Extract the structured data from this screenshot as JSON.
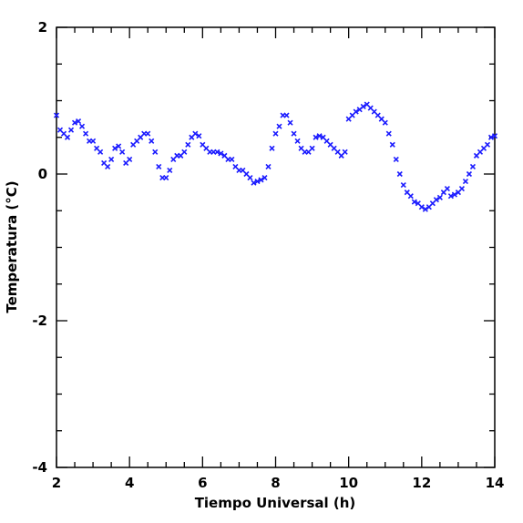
{
  "chart_data": {
    "type": "scatter",
    "xlabel": "Tiempo Universal (h)",
    "ylabel": "Temperatura (°C)",
    "color": "#1a1aff",
    "xlim": [
      2,
      14
    ],
    "xticks": [
      2,
      4,
      6,
      8,
      10,
      12,
      14
    ],
    "ylim": [
      -4,
      2
    ],
    "yticks": [
      -4,
      -2,
      0,
      2
    ],
    "x": [
      2.0,
      2.1,
      2.2,
      2.3,
      2.4,
      2.5,
      2.6,
      2.7,
      2.8,
      2.9,
      3.0,
      3.1,
      3.2,
      3.3,
      3.4,
      3.5,
      3.6,
      3.7,
      3.8,
      3.9,
      4.0,
      4.1,
      4.2,
      4.3,
      4.4,
      4.5,
      4.6,
      4.7,
      4.8,
      4.9,
      5.0,
      5.1,
      5.2,
      5.3,
      5.4,
      5.5,
      5.6,
      5.7,
      5.8,
      5.9,
      6.0,
      6.1,
      6.2,
      6.3,
      6.4,
      6.5,
      6.6,
      6.7,
      6.8,
      6.9,
      7.0,
      7.1,
      7.2,
      7.3,
      7.4,
      7.5,
      7.6,
      7.7,
      7.8,
      7.9,
      8.0,
      8.1,
      8.2,
      8.3,
      8.4,
      8.5,
      8.6,
      8.7,
      8.8,
      8.9,
      9.0,
      9.1,
      9.2,
      9.3,
      9.4,
      9.5,
      9.6,
      9.7,
      9.8,
      9.9,
      10.0,
      10.1,
      10.2,
      10.3,
      10.4,
      10.5,
      10.6,
      10.7,
      10.8,
      10.9,
      11.0,
      11.1,
      11.2,
      11.3,
      11.4,
      11.5,
      11.6,
      11.7,
      11.8,
      11.9,
      12.0,
      12.1,
      12.2,
      12.3,
      12.4,
      12.5,
      12.6,
      12.7,
      12.8,
      12.9,
      13.0,
      13.1,
      13.2,
      13.3,
      13.4,
      13.5,
      13.6,
      13.7,
      13.8,
      13.9,
      14.0
    ],
    "values": [
      0.8,
      0.6,
      0.55,
      0.5,
      0.6,
      0.7,
      0.72,
      0.65,
      0.55,
      0.45,
      0.45,
      0.35,
      0.3,
      0.15,
      0.1,
      0.2,
      0.35,
      0.38,
      0.3,
      0.15,
      0.2,
      0.4,
      0.45,
      0.5,
      0.55,
      0.55,
      0.45,
      0.3,
      0.1,
      -0.05,
      -0.05,
      0.05,
      0.2,
      0.25,
      0.25,
      0.3,
      0.4,
      0.5,
      0.55,
      0.52,
      0.4,
      0.35,
      0.3,
      0.3,
      0.3,
      0.28,
      0.25,
      0.2,
      0.2,
      0.1,
      0.05,
      0.05,
      0.0,
      -0.05,
      -0.12,
      -0.1,
      -0.08,
      -0.05,
      0.1,
      0.35,
      0.55,
      0.65,
      0.8,
      0.8,
      0.7,
      0.55,
      0.45,
      0.35,
      0.3,
      0.3,
      0.35,
      0.5,
      0.52,
      0.5,
      0.45,
      0.4,
      0.35,
      0.3,
      0.25,
      0.3,
      0.75,
      0.8,
      0.85,
      0.88,
      0.92,
      0.95,
      0.9,
      0.85,
      0.8,
      0.75,
      0.7,
      0.55,
      0.4,
      0.2,
      0.0,
      -0.15,
      -0.25,
      -0.3,
      -0.38,
      -0.4,
      -0.45,
      -0.48,
      -0.45,
      -0.4,
      -0.35,
      -0.32,
      -0.25,
      -0.2,
      -0.3,
      -0.28,
      -0.25,
      -0.2,
      -0.1,
      0.0,
      0.1,
      0.25,
      0.3,
      0.35,
      0.4,
      0.5,
      0.52
    ]
  }
}
